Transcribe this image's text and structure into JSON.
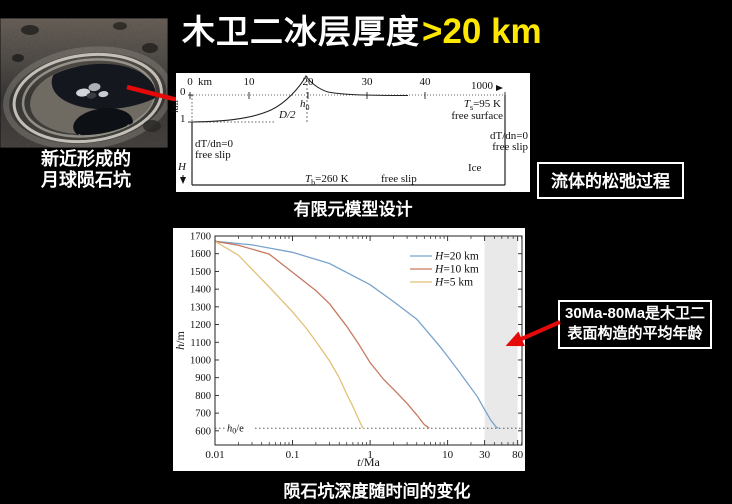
{
  "title": {
    "main": "木卫二冰层厚度",
    "accent": ">20 km",
    "accent_color": "#ffe800"
  },
  "moon_figure": {
    "caption_lines": [
      "新近形成的",
      "月球陨石坑"
    ]
  },
  "fem_diagram": {
    "caption": "有限元模型设计",
    "x_axis": {
      "tick_zero": "0",
      "unit": "km",
      "ticks": [
        "10",
        "20",
        "30",
        "40"
      ],
      "far_tick": "1000"
    },
    "y_axis": {
      "unit": "km",
      "tick_top": "0",
      "tick_bottom": "1"
    },
    "labels": {
      "rim_height": {
        "var": "h",
        "sub": "0"
      },
      "half_diameter": "D/2",
      "surface_temp": {
        "var": "T",
        "sub": "s",
        "rest": "=95 K"
      },
      "free_surface": "free surface",
      "grad_left": "dT/dn=0",
      "free_slip_left": "free slip",
      "grad_right": "dT/dn=0",
      "free_slip_right": "free slip",
      "bottom_temp": {
        "var": "T",
        "sub": "b",
        "rest": "=260 K"
      },
      "free_slip_bottom": "free slip",
      "ice": "Ice",
      "thickness": "H"
    }
  },
  "annotations": {
    "fluid_box": "流体的松弛过程",
    "age_box_lines": [
      "30Ma-80Ma是木卫二",
      "表面构造的平均年龄"
    ]
  },
  "chart_caption": "陨石坑深度随时间的变化",
  "chart_data": {
    "type": "line",
    "xscale": "log",
    "xlabel_var": "t",
    "xlabel_rest": "/Ma",
    "ylabel_var": "h",
    "ylabel_rest": "/m",
    "xlim": [
      0.01,
      91
    ],
    "ylim": [
      520,
      1700
    ],
    "x_ticks": [
      0.01,
      0.1,
      1,
      10,
      30,
      80
    ],
    "x_tick_labels": [
      "0.01",
      "0.1",
      "1",
      "10",
      "30",
      "80"
    ],
    "y_ticks": [
      600,
      700,
      800,
      900,
      1000,
      1100,
      1200,
      1300,
      1400,
      1500,
      1600,
      1700
    ],
    "shaded_region": {
      "from": 30,
      "to": 80,
      "color": "#e9e9e9",
      "meaning": "30Ma-80Ma"
    },
    "reference_line": {
      "y": 615,
      "label_var": "h",
      "label_sub": "0",
      "label_rest": "/e"
    },
    "legend_position": "upper right",
    "grid": false,
    "series": [
      {
        "name": "H=20 km",
        "name_var": "H",
        "name_rest": "=20 km",
        "color": "#7aa3cc",
        "points": [
          [
            0.01,
            1670
          ],
          [
            0.03,
            1650
          ],
          [
            0.1,
            1608
          ],
          [
            0.3,
            1545
          ],
          [
            1,
            1425
          ],
          [
            2,
            1330
          ],
          [
            4,
            1230
          ],
          [
            6,
            1140
          ],
          [
            8,
            1075
          ],
          [
            10,
            1020
          ],
          [
            14,
            935
          ],
          [
            18,
            870
          ],
          [
            24,
            795
          ],
          [
            30,
            720
          ],
          [
            36,
            660
          ],
          [
            42,
            622
          ],
          [
            45,
            615
          ]
        ]
      },
      {
        "name": "H=10 km",
        "name_var": "H",
        "name_rest": "=10 km",
        "color": "#c87961",
        "points": [
          [
            0.01,
            1670
          ],
          [
            0.02,
            1648
          ],
          [
            0.05,
            1598
          ],
          [
            0.1,
            1495
          ],
          [
            0.2,
            1392
          ],
          [
            0.3,
            1318
          ],
          [
            0.5,
            1190
          ],
          [
            0.7,
            1095
          ],
          [
            1,
            985
          ],
          [
            1.5,
            890
          ],
          [
            2,
            835
          ],
          [
            3,
            755
          ],
          [
            4,
            690
          ],
          [
            5,
            635
          ],
          [
            5.8,
            615
          ]
        ]
      },
      {
        "name": "H=5 km",
        "name_var": "H",
        "name_rest": "=5 km",
        "color": "#e2c178",
        "points": [
          [
            0.01,
            1670
          ],
          [
            0.02,
            1592
          ],
          [
            0.05,
            1412
          ],
          [
            0.1,
            1272
          ],
          [
            0.15,
            1180
          ],
          [
            0.2,
            1105
          ],
          [
            0.3,
            995
          ],
          [
            0.4,
            900
          ],
          [
            0.5,
            808
          ],
          [
            0.6,
            738
          ],
          [
            0.7,
            672
          ],
          [
            0.8,
            618
          ],
          [
            0.83,
            615
          ]
        ]
      }
    ]
  }
}
